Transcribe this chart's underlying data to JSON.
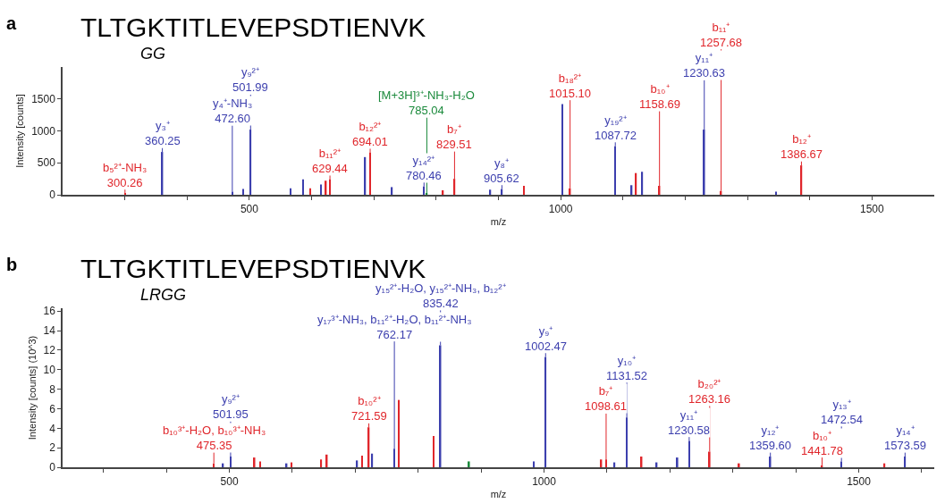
{
  "chart_data": [
    {
      "type": "bar",
      "title": "TLTGKTITLEVEPSDTIENVK",
      "xlabel": "m/z",
      "ylabel": "Intensity [counts]",
      "xlim": [
        200,
        1600
      ],
      "ylim": [
        0,
        2000
      ],
      "xticks": [
        {
          "value": 300,
          "label": null
        },
        {
          "value": 400,
          "label": null
        },
        500,
        {
          "value": 600,
          "label": null
        },
        {
          "value": 700,
          "label": null
        },
        {
          "value": 800,
          "label": null
        },
        {
          "value": 900,
          "label": null
        },
        1000,
        {
          "value": 1100,
          "label": null
        },
        {
          "value": 1200,
          "label": null
        },
        {
          "value": 1300,
          "label": null
        },
        {
          "value": 1400,
          "label": null
        },
        1500
      ],
      "yticks": [
        0,
        500,
        1000,
        1500
      ],
      "series": [
        {
          "color": "#e0262b",
          "x": [
            300.26,
            598,
            623,
            629.44,
            694.01,
            811,
            829.51,
            941,
            1015.1,
            1121,
            1158.69,
            1257.68,
            1386.67
          ],
          "values": [
            20,
            100,
            220,
            240,
            660,
            70,
            250,
            140,
            100,
            340,
            140,
            60,
            460
          ]
        },
        {
          "color": "#3c3fae",
          "x": [
            360.25,
            472.6,
            490,
            501.99,
            566,
            586,
            615,
            686,
            729,
            780.46,
            887,
            905.62,
            1002.7,
            1087.72,
            1114,
            1131,
            1230.63,
            1346
          ],
          "values": [
            670,
            50,
            90,
            1020,
            100,
            240,
            160,
            590,
            120,
            130,
            80,
            90,
            1420,
            760,
            150,
            360,
            1020,
            50
          ]
        },
        {
          "color": "#1b8a3c",
          "x": [
            785.04
          ],
          "values": [
            30
          ]
        }
      ],
      "annotations": [
        "a",
        "GG",
        {
          "text": "b₅²⁺-NH₃\n300.26",
          "x": 300.26,
          "y": 20
        },
        {
          "text": "y₃⁺\n360.25",
          "x": 360.25,
          "y": 670
        },
        {
          "text": "y₄⁺-NH₃\n472.60",
          "x": 472.6,
          "y": 50
        },
        {
          "text": "y₉²⁺\n501.99",
          "x": 501.99,
          "y": 1020
        },
        {
          "text": "b₁₁²⁺\n629.44",
          "x": 629.44,
          "y": 240
        },
        {
          "text": "b₁₂²⁺\n694.01",
          "x": 694.01,
          "y": 660
        },
        {
          "text": "y₁₄²⁺\n780.46",
          "x": 780.46,
          "y": 130
        },
        {
          "text": "[M+3H]³⁺-NH₃-H₂O\n785.04",
          "x": 785.04,
          "y": 30
        },
        {
          "text": "b₇⁺\n829.51",
          "x": 829.51,
          "y": 250
        },
        {
          "text": "y₈⁺\n905.62",
          "x": 905.62,
          "y": 90
        },
        {
          "text": "b₁₈²⁺\n1015.10",
          "x": 1015.1,
          "y": 100
        },
        {
          "text": "y₁₉²⁺\n1087.72",
          "x": 1087.72,
          "y": 760
        },
        {
          "text": "b₁₀⁺\n1158.69",
          "x": 1158.69,
          "y": 140
        },
        {
          "text": "y₁₁⁺\n1230.63",
          "x": 1230.63,
          "y": 1020
        },
        {
          "text": "b₁₁⁺\n1257.68",
          "x": 1257.68,
          "y": 60
        },
        {
          "text": "b₁₂⁺\n1386.67",
          "x": 1386.67,
          "y": 460
        }
      ]
    },
    {
      "type": "bar",
      "title": "TLTGKTITLEVEPSDTIENVK",
      "xlabel": "m/z",
      "ylabel": "Intensity [counts] (10^3)",
      "xlim": [
        235,
        1620
      ],
      "ylim": [
        0,
        16.3
      ],
      "xticks": [
        {
          "value": 300,
          "label": null
        },
        {
          "value": 400,
          "label": null
        },
        500,
        {
          "value": 600,
          "label": null
        },
        {
          "value": 700,
          "label": null
        },
        {
          "value": 800,
          "label": null
        },
        {
          "value": 900,
          "label": null
        },
        1000,
        {
          "value": 1100,
          "label": null
        },
        {
          "value": 1200,
          "label": null
        },
        {
          "value": 1300,
          "label": null
        },
        {
          "value": 1400,
          "label": null
        },
        1500,
        {
          "value": 1600,
          "label": null
        }
      ],
      "yticks": [
        0,
        2,
        4,
        6,
        8,
        10,
        12,
        14,
        16
      ],
      "series": [
        {
          "color": "#e0262b",
          "x": [
            475.35,
            540,
            549,
            599,
            646,
            655,
            711,
            721.59,
            769.5,
            824.8,
            1091,
            1098.61,
            1155,
            1263.16,
            1310,
            1441.78,
            1541
          ],
          "values": [
            0.4,
            1.0,
            0.6,
            0.5,
            0.8,
            1.3,
            1.2,
            4.1,
            6.9,
            3.2,
            0.8,
            0.8,
            1.1,
            1.6,
            0.4,
            0.2,
            0.4
          ]
        },
        {
          "color": "#3c3fae",
          "x": [
            490,
            501.95,
            591,
            703,
            727,
            762.17,
            835.42,
            984,
            1002.47,
            1112,
            1131.52,
            1179,
            1212,
            1230.58,
            1359.6,
            1472.54,
            1573.59
          ],
          "values": [
            0.4,
            1.1,
            0.4,
            0.7,
            1.4,
            1.9,
            12.5,
            0.6,
            11.3,
            0.5,
            5.1,
            0.5,
            1.0,
            2.7,
            1.1,
            0.6,
            1.1
          ]
        },
        {
          "color": "#1b8a3c",
          "x": [
            881
          ],
          "values": [
            0.6
          ]
        }
      ],
      "annotations": [
        "b",
        "LRGG",
        {
          "text": "b₁₀³⁺-H₂O, b₁₀³⁺-NH₃\n475.35",
          "x": 475.35,
          "y": 0.4
        },
        {
          "text": "y₉²⁺\n501.95",
          "x": 501.95,
          "y": 1.1
        },
        {
          "text": "b₁₀²⁺\n721.59",
          "x": 721.59,
          "y": 4.1
        },
        {
          "text": "y₁₇³⁺-NH₃, b₁₁²⁺-H₂O, b₁₁²⁺-NH₃\n762.17",
          "x": 762.17,
          "y": 1.9
        },
        {
          "text": "y₁₅²⁺-H₂O, y₁₅²⁺-NH₃, b₁₂²⁺\n835.42",
          "x": 835.42,
          "y": 12.5
        },
        {
          "text": "y₉⁺\n1002.47",
          "x": 1002.47,
          "y": 11.3
        },
        {
          "text": "b₇⁺\n1098.61",
          "x": 1098.61,
          "y": 0.8
        },
        {
          "text": "y₁₀⁺\n1131.52",
          "x": 1131.52,
          "y": 5.1
        },
        {
          "text": "y₁₁⁺\n1230.58",
          "x": 1230.58,
          "y": 2.7
        },
        {
          "text": "b₂₀²⁺\n1263.16",
          "x": 1263.16,
          "y": 1.6
        },
        {
          "text": "y₁₂⁺\n1359.60",
          "x": 1359.6,
          "y": 1.1
        },
        {
          "text": "b₁₀⁺\n1441.78",
          "x": 1441.78,
          "y": 0.2
        },
        {
          "text": "y₁₃⁺\n1472.54",
          "x": 1472.54,
          "y": 0.6
        },
        {
          "text": "y₁₄⁺\n1573.59",
          "x": 1573.59,
          "y": 1.1
        }
      ]
    }
  ]
}
